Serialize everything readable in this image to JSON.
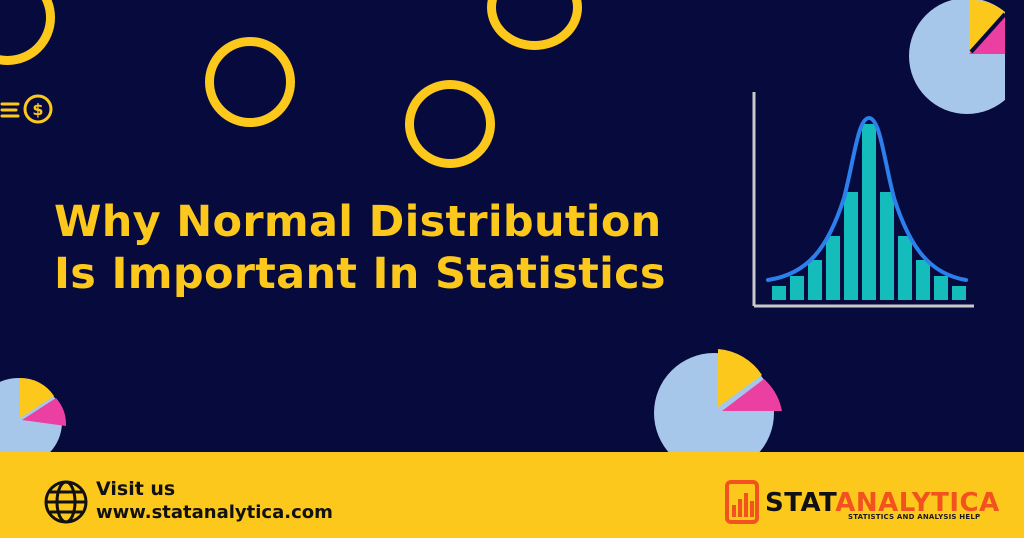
{
  "title": {
    "line1": "Why Normal Distribution",
    "line2": "Is Important In Statistics"
  },
  "footer": {
    "visit_label": "Visit us",
    "visit_url": "www.statanalytica.com",
    "brand": {
      "part1": "STAT",
      "part2": "ANALYTICA",
      "tagline": "STATISTICS AND ANALYSIS HELP"
    }
  },
  "colors": {
    "background": "#070a3c",
    "accent_yellow": "#fcc81c",
    "pie_blue": "#a6c6ea",
    "pie_pink": "#ec3fa2",
    "bar_teal": "#15bcbc",
    "curve_blue": "#2b80ee",
    "brand_orange": "#f2531e"
  },
  "icons": [
    "coin-icon",
    "globe-icon",
    "statanalytica-logo-icon"
  ]
}
